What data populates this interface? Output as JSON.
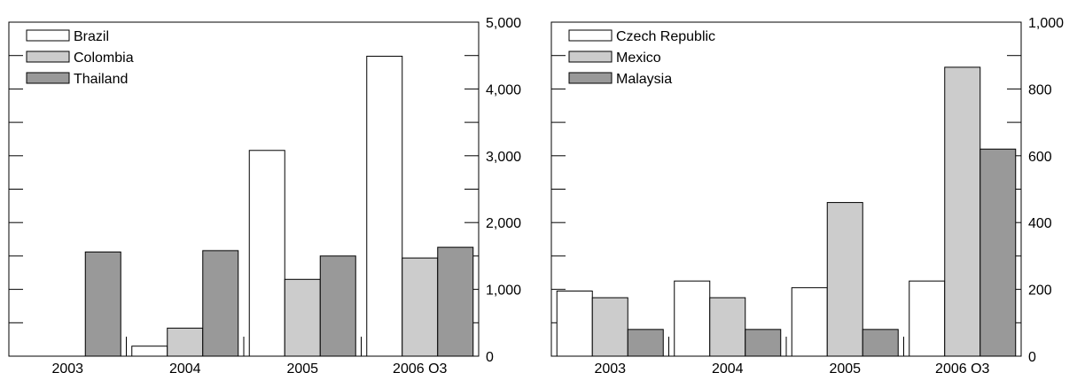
{
  "chart_data": [
    {
      "type": "bar",
      "categories": [
        "2003",
        "2004",
        "2005",
        "2006 Q3"
      ],
      "series": [
        {
          "name": "Brazil",
          "values": [
            0,
            150,
            3080,
            4490
          ]
        },
        {
          "name": "Colombia",
          "values": [
            0,
            420,
            1150,
            1470
          ]
        },
        {
          "name": "Thailand",
          "values": [
            1560,
            1580,
            1500,
            1630
          ]
        }
      ],
      "ylim": [
        0,
        5000
      ],
      "yticks": [
        0,
        1000,
        2000,
        3000,
        4000,
        5000
      ],
      "ytick_labels": [
        "0",
        "1,000",
        "2,000",
        "3,000",
        "4,000",
        "5,000"
      ],
      "y_axis_side": "right",
      "legend": "top-left",
      "colors": [
        "#ffffff",
        "#cccccc",
        "#999999"
      ]
    },
    {
      "type": "bar",
      "categories": [
        "2003",
        "2004",
        "2005",
        "2006 Q3"
      ],
      "series": [
        {
          "name": "Czech Republic",
          "values": [
            195,
            225,
            205,
            225
          ]
        },
        {
          "name": "Mexico",
          "values": [
            175,
            175,
            460,
            865
          ]
        },
        {
          "name": "Malaysia",
          "values": [
            80,
            80,
            80,
            620
          ]
        }
      ],
      "ylim": [
        0,
        1000
      ],
      "yticks": [
        0,
        200,
        400,
        600,
        800,
        1000
      ],
      "ytick_labels": [
        "0",
        "200",
        "400",
        "600",
        "800",
        "1,000"
      ],
      "y_axis_side": "right",
      "legend": "top-left",
      "colors": [
        "#ffffff",
        "#cccccc",
        "#999999"
      ]
    }
  ]
}
